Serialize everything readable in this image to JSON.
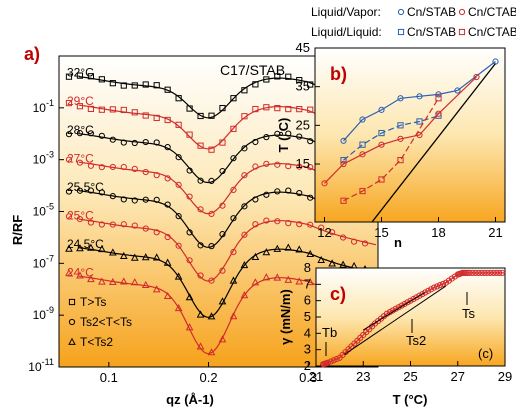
{
  "legend": {
    "row1_title": "Liquid/Vapor:",
    "row2_title": "Liquid/Liquid:",
    "entry_stab": "Cn/STAB",
    "entry_ctab": "Cn/CTAB"
  },
  "colors": {
    "stab": "#2b5fb4",
    "ctab": "#d22b2b",
    "black": "#000000",
    "accent_label": "#c00000"
  },
  "chart_data": [
    {
      "panel": "a)",
      "type": "scatter",
      "annotation": "C17/STAB",
      "xlabel": "qz (Å-1)",
      "ylabel": "R/RF",
      "xlim": [
        0.05,
        0.37
      ],
      "xticks": [
        "0.1",
        "0.2",
        "0.3"
      ],
      "yscale": "log",
      "ylim_exp": [
        -11,
        1
      ],
      "yticks": [
        "10^-1",
        "10^-3",
        "10^-5",
        "10^-7",
        "10^-9",
        "10^-11"
      ],
      "legend_entries": [
        "T>Ts",
        "Ts2<T<Ts",
        "T<Ts2"
      ],
      "series": [
        {
          "label": "32°C",
          "color": "black",
          "marker": "square",
          "base": 0.0,
          "depth": 1.2
        },
        {
          "label": "29°C",
          "color": "red",
          "marker": "square",
          "base": -1.1,
          "depth": 1.3
        },
        {
          "label": "28°C",
          "color": "black",
          "marker": "circle",
          "base": -2.2,
          "depth": 1.5
        },
        {
          "label": "27°C",
          "color": "red",
          "marker": "circle",
          "base": -3.3,
          "depth": 1.6
        },
        {
          "label": "25.5°C",
          "color": "black",
          "marker": "circle",
          "base": -4.4,
          "depth": 1.8
        },
        {
          "label": "25°C",
          "color": "red",
          "marker": "circle",
          "base": -5.5,
          "depth": 2.0
        },
        {
          "label": "24.5°C",
          "color": "black",
          "marker": "triangle",
          "base": -6.6,
          "depth": 2.3
        },
        {
          "label": "24°C",
          "color": "red",
          "marker": "triangle",
          "base": -7.7,
          "depth": 2.6
        }
      ]
    },
    {
      "panel": "b)",
      "type": "line",
      "xlabel": "n",
      "ylabel": "T (°C)",
      "xlim": [
        11.5,
        21.5
      ],
      "ylim": [
        0,
        45
      ],
      "xticks": [
        12,
        15,
        18,
        21
      ],
      "yticks": [
        15,
        25,
        35,
        45
      ],
      "series": [
        {
          "name": "Cn/STAB liquid/vapor",
          "color": "stab",
          "marker": "circle",
          "filled": false,
          "x": [
            13,
            14,
            15,
            16,
            17,
            18,
            19,
            21
          ],
          "y": [
            21,
            26.5,
            29,
            32,
            32.5,
            33,
            34,
            41.5
          ]
        },
        {
          "name": "Cn/STAB liquid/liquid",
          "color": "stab",
          "marker": "square",
          "filled": false,
          "x": [
            13,
            14,
            15,
            16,
            17,
            18
          ],
          "y": [
            16,
            20,
            23,
            25,
            26,
            27.5
          ]
        },
        {
          "name": "Cn/CTAB liquid/vapor",
          "color": "ctab",
          "marker": "circle",
          "filled": false,
          "x": [
            12,
            13,
            14,
            15,
            16,
            17,
            18,
            20
          ],
          "y": [
            10,
            15,
            17.5,
            20,
            21.5,
            22.5,
            28,
            37.5
          ]
        },
        {
          "name": "Cn/CTAB liquid/liquid",
          "color": "ctab",
          "marker": "square",
          "filled": false,
          "x": [
            13,
            14,
            15,
            16,
            18
          ],
          "y": [
            5.5,
            8,
            11,
            16,
            32
          ]
        },
        {
          "name": "bulk line",
          "color": "black",
          "marker": "none",
          "x": [
            14.5,
            21
          ],
          "y": [
            0,
            41
          ]
        }
      ]
    },
    {
      "panel": "c)",
      "type": "line",
      "xlabel": "T (°C)",
      "ylabel": "γ (mN/m)",
      "xlim": [
        21,
        29
      ],
      "ylim": [
        2,
        8
      ],
      "xticks": [
        21,
        23,
        25,
        27,
        29
      ],
      "yticks": [
        2,
        3,
        4,
        5,
        6,
        7,
        8
      ],
      "annotations": [
        "Tb",
        "Ts2",
        "Ts",
        "(c)"
      ],
      "series": [
        {
          "name": "gamma",
          "color": "ctab",
          "marker": "circle",
          "x": [
            21.3,
            21.5,
            22.0,
            22.5,
            23.0,
            23.5,
            24.0,
            24.5,
            25.0,
            25.5,
            26.0,
            26.5,
            27.0,
            27.2,
            27.5,
            28.0,
            28.5,
            29.0
          ],
          "y": [
            2.1,
            2.2,
            2.5,
            3.2,
            3.9,
            4.6,
            5.2,
            5.6,
            6.0,
            6.4,
            6.8,
            7.1,
            7.6,
            7.7,
            7.7,
            7.7,
            7.7,
            7.7
          ]
        }
      ],
      "fit_lines": [
        {
          "x": [
            22.2,
            26.5
          ],
          "y": [
            2.7,
            6.9
          ]
        },
        {
          "x": [
            23.0,
            25.6
          ],
          "y": [
            4.2,
            6.5
          ]
        }
      ]
    }
  ]
}
